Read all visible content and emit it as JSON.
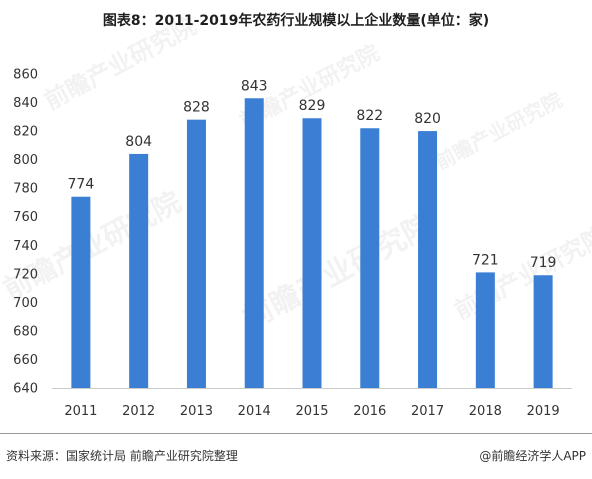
{
  "title": "图表8：2011-2019年农药行业规模以上企业数量(单位：家)",
  "source": "资料来源：国家统计局 前瞻产业研究院整理",
  "brand": "@前瞻经济学人APP",
  "watermark": "前瞻产业研究院",
  "colors": {
    "bar": "#3a7fd4",
    "text": "#333333",
    "axis": "#cccccc"
  },
  "chart_data": {
    "type": "bar",
    "categories": [
      "2011",
      "2012",
      "2013",
      "2014",
      "2015",
      "2016",
      "2017",
      "2018",
      "2019"
    ],
    "values": [
      774,
      804,
      828,
      843,
      829,
      822,
      820,
      721,
      719
    ],
    "yticks": [
      640,
      660,
      680,
      700,
      720,
      740,
      760,
      780,
      800,
      820,
      840,
      860
    ],
    "ylim": [
      640,
      860
    ],
    "grid": false,
    "legend": "none"
  }
}
